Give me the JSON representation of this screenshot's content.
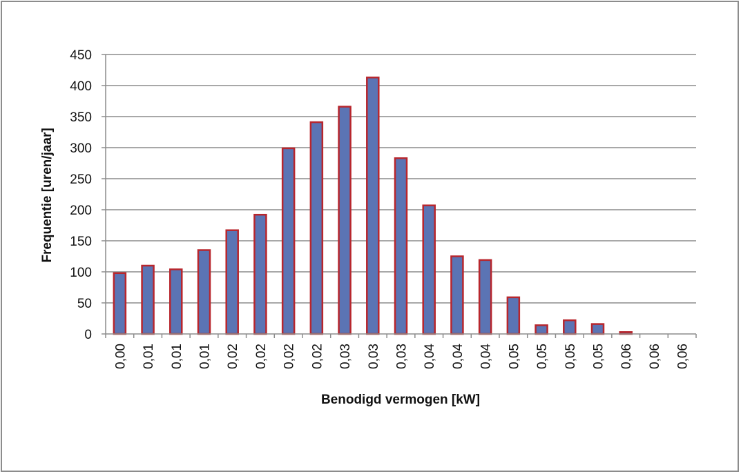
{
  "chart_data": {
    "type": "bar",
    "title": "",
    "xlabel": "Benodigd vermogen [kW]",
    "ylabel": "Frequentie [uren/jaar]",
    "ylim": [
      0,
      450
    ],
    "ytick_step": 50,
    "categories": [
      "0,00",
      "0,01",
      "0,01",
      "0,01",
      "0,02",
      "0,02",
      "0,02",
      "0,02",
      "0,03",
      "0,03",
      "0,03",
      "0,04",
      "0,04",
      "0,04",
      "0,05",
      "0,05",
      "0,05",
      "0,05",
      "0,06",
      "0,06",
      "0,06"
    ],
    "series": [
      {
        "values": [
          98,
          110,
          104,
          135,
          167,
          192,
          299,
          341,
          366,
          413,
          283,
          207,
          125,
          119,
          59,
          14,
          22,
          16,
          3,
          0,
          0
        ]
      }
    ],
    "bar_fill": "#5b74b4",
    "bar_stroke": "#b8262d",
    "grid": true,
    "grid_color": "#8c8c8c",
    "legend": "none"
  }
}
